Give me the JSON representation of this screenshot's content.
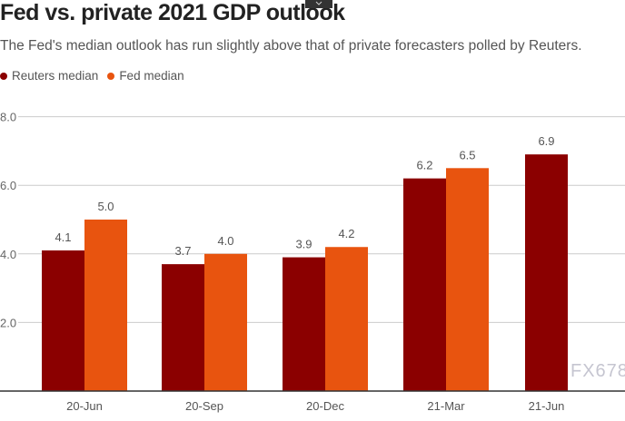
{
  "title": "Fed vs. private 2021 GDP outlook",
  "subtitle": "The Fed's median outlook has run slightly above that of private forecasters polled by Reuters.",
  "top_tab_icon": "chevron-down-icon",
  "watermark": "FX678",
  "colors": {
    "reuters": "#8b0000",
    "fed": "#e8540f",
    "grid": "#cccccc",
    "axis": "#333333"
  },
  "chart_data": {
    "type": "bar",
    "title": "Fed vs. private 2021 GDP outlook",
    "categories": [
      "20-Jun",
      "20-Sep",
      "20-Dec",
      "21-Mar",
      "21-Jun"
    ],
    "series": [
      {
        "name": "Reuters median",
        "values": [
          4.1,
          3.7,
          3.9,
          6.2,
          6.9
        ]
      },
      {
        "name": "Fed median",
        "values": [
          5.0,
          4.0,
          4.2,
          6.5,
          null
        ]
      }
    ],
    "yticks": [
      "2.0",
      "4.0",
      "6.0",
      "8.0"
    ],
    "ylim": [
      0,
      8
    ],
    "grid": true,
    "legend": "top-left"
  }
}
